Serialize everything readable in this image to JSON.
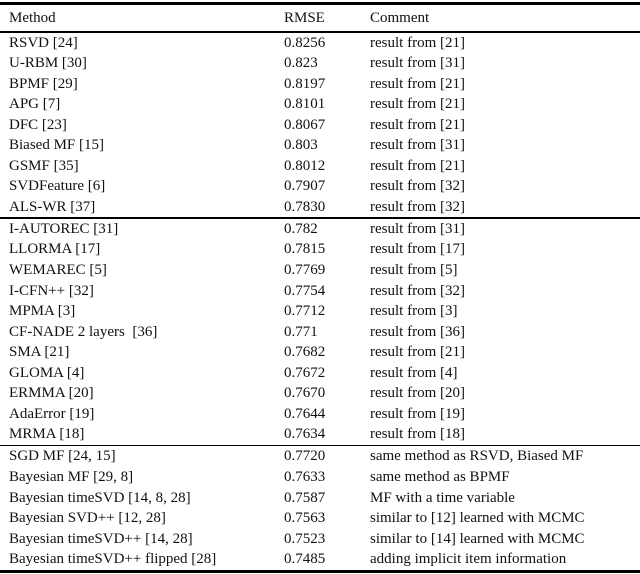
{
  "table": {
    "columns": [
      "Method",
      "RMSE",
      "Comment"
    ],
    "sections": [
      {
        "rows": [
          {
            "method": "RSVD [24]",
            "rmse": "0.8256",
            "comment": "result from [21]"
          },
          {
            "method": "U-RBM [30]",
            "rmse": "0.823",
            "comment": "result from [31]"
          },
          {
            "method": "BPMF [29]",
            "rmse": "0.8197",
            "comment": "result from [21]"
          },
          {
            "method": "APG [7]",
            "rmse": "0.8101",
            "comment": "result from [21]"
          },
          {
            "method": "DFC [23]",
            "rmse": "0.8067",
            "comment": "result from [21]"
          },
          {
            "method": "Biased MF [15]",
            "rmse": "0.803",
            "comment": "result from [31]"
          },
          {
            "method": "GSMF [35]",
            "rmse": "0.8012",
            "comment": "result from [21]"
          },
          {
            "method": "SVDFeature [6]",
            "rmse": "0.7907",
            "comment": "result from [32]"
          },
          {
            "method": "ALS-WR [37]",
            "rmse": "0.7830",
            "comment": "result from [32]"
          }
        ]
      },
      {
        "rows": [
          {
            "method": "I-AUTOREC [31]",
            "rmse": "0.782",
            "comment": "result from [31]"
          },
          {
            "method": "LLORMA [17]",
            "rmse": "0.7815",
            "comment": "result from [17]"
          },
          {
            "method": "WEMAREC [5]",
            "rmse": "0.7769",
            "comment": "result from [5]"
          },
          {
            "method": "I-CFN++ [32]",
            "rmse": "0.7754",
            "comment": "result from [32]"
          },
          {
            "method": "MPMA [3]",
            "rmse": "0.7712",
            "comment": "result from [3]"
          },
          {
            "method": "CF-NADE 2 layers  [36]",
            "rmse": "0.771",
            "comment": "result from [36]"
          },
          {
            "method": "SMA [21]",
            "rmse": "0.7682",
            "comment": "result from [21]"
          },
          {
            "method": "GLOMA [4]",
            "rmse": "0.7672",
            "comment": "result from [4]"
          },
          {
            "method": "ERMMA [20]",
            "rmse": "0.7670",
            "comment": "result from [20]"
          },
          {
            "method": "AdaError [19]",
            "rmse": "0.7644",
            "comment": "result from [19]"
          },
          {
            "method": "MRMA [18]",
            "rmse": "0.7634",
            "comment": "result from [18]"
          }
        ]
      },
      {
        "rows": [
          {
            "method": "SGD MF [24, 15]",
            "rmse": "0.7720",
            "comment": "same method as RSVD, Biased MF"
          },
          {
            "method": "Bayesian MF [29, 8]",
            "rmse": "0.7633",
            "comment": "same method as BPMF"
          },
          {
            "method": "Bayesian timeSVD [14, 8, 28]",
            "rmse": "0.7587",
            "comment": "MF with a time variable"
          },
          {
            "method": "Bayesian SVD++ [12, 28]",
            "rmse": "0.7563",
            "comment": "similar to [12] learned with MCMC"
          },
          {
            "method": "Bayesian timeSVD++ [14, 28]",
            "rmse": "0.7523",
            "comment": "similar to [14] learned with MCMC"
          },
          {
            "method": "Bayesian timeSVD++ flipped [28]",
            "rmse": "0.7485",
            "comment": "adding implicit item information"
          }
        ]
      }
    ]
  }
}
